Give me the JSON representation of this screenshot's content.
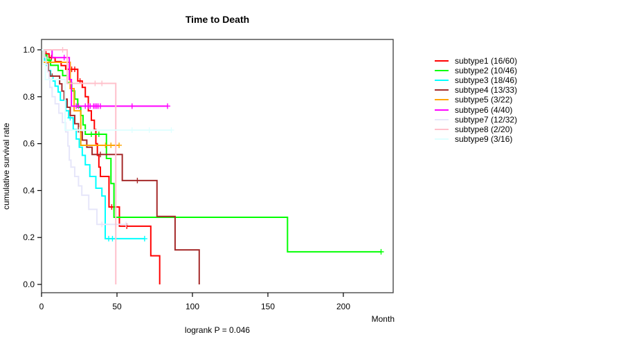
{
  "chart_data": {
    "type": "line",
    "subtype": "kaplan-meier-survival-steps",
    "title": "Time to Death",
    "xlabel": "Month",
    "ylabel": "cumulative survival rate",
    "footer": "logrank P = 0.046",
    "xlim": [
      0,
      233
    ],
    "ylim": [
      0.0,
      1.0
    ],
    "x_ticks": [
      0,
      50,
      100,
      150,
      200
    ],
    "y_ticks": [
      0.0,
      0.2,
      0.4,
      0.6,
      0.8,
      1.0
    ],
    "grid": false,
    "legend_position": "right-outside",
    "series": [
      {
        "name": "subtype1",
        "label": "subtype1 (16/60)",
        "color": "#FF0000",
        "steps": [
          [
            0,
            1.0
          ],
          [
            2,
            0.983
          ],
          [
            5,
            0.967
          ],
          [
            9,
            0.95
          ],
          [
            13,
            0.933
          ],
          [
            16,
            0.917
          ],
          [
            24,
            0.867
          ],
          [
            27,
            0.84
          ],
          [
            29,
            0.8
          ],
          [
            31,
            0.74
          ],
          [
            33,
            0.7
          ],
          [
            35,
            0.66
          ],
          [
            36,
            0.6
          ],
          [
            37,
            0.55
          ],
          [
            38,
            0.5
          ],
          [
            39,
            0.46
          ],
          [
            44.7,
            0.33
          ],
          [
            51.6,
            0.248
          ],
          [
            72.4,
            0.122
          ],
          [
            78.3,
            0.0
          ]
        ],
        "censors": [
          [
            3,
            0.983
          ],
          [
            6.5,
            0.967
          ],
          [
            20,
            0.917
          ],
          [
            22,
            0.917
          ],
          [
            25.5,
            0.867
          ],
          [
            46.5,
            0.33
          ],
          [
            56.5,
            0.248
          ]
        ],
        "end": 78.3
      },
      {
        "name": "subtype2",
        "label": "subtype2 (10/46)",
        "color": "#00FF00",
        "steps": [
          [
            0,
            1.0
          ],
          [
            2,
            0.978
          ],
          [
            3.5,
            0.956
          ],
          [
            6,
            0.934
          ],
          [
            11,
            0.912
          ],
          [
            14,
            0.89
          ],
          [
            17,
            0.86
          ],
          [
            20,
            0.825
          ],
          [
            22,
            0.79
          ],
          [
            24,
            0.755
          ],
          [
            26,
            0.72
          ],
          [
            27.5,
            0.68
          ],
          [
            29,
            0.64
          ],
          [
            43,
            0.537
          ],
          [
            46,
            0.43
          ],
          [
            48,
            0.286
          ],
          [
            163,
            0.139
          ]
        ],
        "censors": [
          [
            5,
            0.956
          ],
          [
            33,
            0.64
          ],
          [
            38,
            0.64
          ],
          [
            225,
            0.139
          ]
        ],
        "end": 225
      },
      {
        "name": "subtype3",
        "label": "subtype3 (18/46)",
        "color": "#00FFFF",
        "steps": [
          [
            0,
            1.0
          ],
          [
            1,
            0.978
          ],
          [
            2,
            0.956
          ],
          [
            3,
            0.934
          ],
          [
            4.5,
            0.912
          ],
          [
            6,
            0.889
          ],
          [
            7.5,
            0.867
          ],
          [
            9,
            0.845
          ],
          [
            11,
            0.82
          ],
          [
            12.5,
            0.785
          ],
          [
            16,
            0.74
          ],
          [
            18,
            0.71
          ],
          [
            21,
            0.66
          ],
          [
            23,
            0.62
          ],
          [
            25,
            0.585
          ],
          [
            27,
            0.55
          ],
          [
            29,
            0.51
          ],
          [
            32,
            0.46
          ],
          [
            36,
            0.41
          ],
          [
            40,
            0.377
          ],
          [
            42.2,
            0.195
          ]
        ],
        "censors": [
          [
            19,
            0.71
          ],
          [
            44.5,
            0.195
          ],
          [
            47,
            0.195
          ],
          [
            68.3,
            0.195
          ]
        ],
        "end": 68.3
      },
      {
        "name": "subtype4",
        "label": "subtype4 (13/33)",
        "color": "#A52A2A",
        "steps": [
          [
            0,
            1.0
          ],
          [
            1.5,
            0.97
          ],
          [
            3,
            0.94
          ],
          [
            4.5,
            0.909
          ],
          [
            5.5,
            0.888
          ],
          [
            12,
            0.855
          ],
          [
            13.5,
            0.824
          ],
          [
            15,
            0.79
          ],
          [
            17,
            0.755
          ],
          [
            19,
            0.72
          ],
          [
            22,
            0.685
          ],
          [
            24.5,
            0.65
          ],
          [
            27,
            0.615
          ],
          [
            30,
            0.585
          ],
          [
            33.5,
            0.554
          ],
          [
            53.5,
            0.443
          ],
          [
            76.5,
            0.29
          ],
          [
            88.5,
            0.147
          ],
          [
            104.5,
            0.0
          ]
        ],
        "censors": [
          [
            7,
            0.888
          ],
          [
            39,
            0.554
          ],
          [
            63.5,
            0.443
          ]
        ],
        "end": 104.5
      },
      {
        "name": "subtype5",
        "label": "subtype5 (3/22)",
        "color": "#FFA500",
        "steps": [
          [
            0,
            1.0
          ],
          [
            1,
            0.947
          ],
          [
            19,
            0.835
          ],
          [
            21.6,
            0.74
          ],
          [
            26,
            0.593
          ]
        ],
        "censors": [
          [
            42.4,
            0.593
          ],
          [
            46,
            0.593
          ],
          [
            51.4,
            0.593
          ]
        ],
        "end": 51.4
      },
      {
        "name": "subtype6",
        "label": "subtype6 (4/40)",
        "color": "#FF00FF",
        "steps": [
          [
            0,
            1.0
          ],
          [
            7,
            0.967
          ],
          [
            18.4,
            0.873
          ],
          [
            19.8,
            0.76
          ]
        ],
        "censors": [
          [
            15,
            0.967
          ],
          [
            17,
            0.967
          ],
          [
            23,
            0.76
          ],
          [
            24.5,
            0.76
          ],
          [
            29,
            0.76
          ],
          [
            31,
            0.76
          ],
          [
            32.3,
            0.76
          ],
          [
            34.5,
            0.76
          ],
          [
            35.5,
            0.76
          ],
          [
            36.5,
            0.76
          ],
          [
            37.5,
            0.76
          ],
          [
            39,
            0.76
          ],
          [
            60,
            0.76
          ],
          [
            83.5,
            0.76
          ]
        ],
        "end": 83.5
      },
      {
        "name": "subtype7",
        "label": "subtype7 (12/32)",
        "color": "#E6E6FA",
        "steps": [
          [
            0,
            1.0
          ],
          [
            2,
            0.969
          ],
          [
            3,
            0.938
          ],
          [
            4,
            0.906
          ],
          [
            5,
            0.875
          ],
          [
            5.5,
            0.84
          ],
          [
            7,
            0.8
          ],
          [
            9,
            0.77
          ],
          [
            11.5,
            0.73
          ],
          [
            13.8,
            0.69
          ],
          [
            16,
            0.65
          ],
          [
            17.5,
            0.59
          ],
          [
            18.4,
            0.53
          ],
          [
            19.5,
            0.5
          ],
          [
            22,
            0.46
          ],
          [
            24.5,
            0.42
          ],
          [
            26.7,
            0.38
          ],
          [
            31.3,
            0.32
          ],
          [
            36.7,
            0.256
          ]
        ],
        "censors": [
          [
            40,
            0.256
          ],
          [
            56,
            0.256
          ]
        ],
        "end": 56
      },
      {
        "name": "subtype8",
        "label": "subtype8 (2/20)",
        "color": "#FFC0CB",
        "steps": [
          [
            0,
            1.0
          ],
          [
            17,
            0.857
          ],
          [
            49.2,
            0.0
          ]
        ],
        "censors": [
          [
            14,
            1.0
          ],
          [
            35.5,
            0.857
          ],
          [
            40,
            0.857
          ]
        ],
        "end": 49.2
      },
      {
        "name": "subtype9",
        "label": "subtype9 (3/16)",
        "color": "#E0FFFF",
        "steps": [
          [
            0,
            1.0
          ],
          [
            1,
            0.938
          ],
          [
            2.5,
            0.873
          ],
          [
            15.6,
            0.658
          ]
        ],
        "censors": [
          [
            7,
            0.873
          ],
          [
            25,
            0.658
          ],
          [
            60,
            0.658
          ],
          [
            71.4,
            0.658
          ],
          [
            86,
            0.658
          ]
        ],
        "end": 86
      }
    ]
  }
}
